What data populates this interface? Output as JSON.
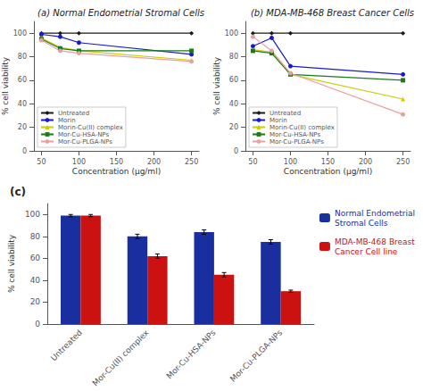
{
  "chart_data": [
    {
      "type": "line",
      "title": "(a) Normal Endometrial Stromal Cells",
      "xlabel": "Concentration (μg/ml)",
      "ylabel": "% cell viability",
      "x": [
        50,
        75,
        100,
        250
      ],
      "series": [
        {
          "name": "Untreated",
          "color": "#1a1a1a",
          "marker": "diamond",
          "values": [
            100,
            100,
            100,
            100
          ]
        },
        {
          "name": "Morin",
          "color": "#1a1acc",
          "marker": "circle",
          "values": [
            99,
            97,
            92,
            82
          ]
        },
        {
          "name": "Morin-Cu(II) complex",
          "color": "#cccc00",
          "marker": "triangle",
          "values": [
            96,
            88,
            85,
            77
          ]
        },
        {
          "name": "Mor-Cu-HSA-NPs",
          "color": "#1a7a1a",
          "marker": "square",
          "values": [
            95,
            87,
            85,
            85
          ]
        },
        {
          "name": "Mor-Cu-PLGA-NPs",
          "color": "#e8a0a0",
          "marker": "circle",
          "values": [
            94,
            85,
            83,
            76
          ]
        }
      ],
      "xlim": [
        40,
        260
      ],
      "xticks": [
        50,
        100,
        150,
        200,
        250
      ],
      "ylim": [
        0,
        110
      ],
      "yticks": [
        0,
        20,
        40,
        60,
        80,
        100
      ],
      "legend": "lower left",
      "grid": false
    },
    {
      "type": "line",
      "title": "(b) MDA-MB-468 Breast Cancer Cells",
      "xlabel": "Concentration (μg/ml)",
      "ylabel": "% cell viability",
      "x": [
        50,
        75,
        100,
        250
      ],
      "series": [
        {
          "name": "Untreated",
          "color": "#1a1a1a",
          "marker": "diamond",
          "values": [
            100,
            100,
            100,
            100
          ]
        },
        {
          "name": "Morin",
          "color": "#1a1acc",
          "marker": "circle",
          "values": [
            89,
            96,
            72,
            65
          ]
        },
        {
          "name": "Morin-Cu(II) complex",
          "color": "#cccc00",
          "marker": "triangle",
          "values": [
            86,
            84,
            65,
            44
          ]
        },
        {
          "name": "Mor-Cu-HSA-NPs",
          "color": "#1a7a1a",
          "marker": "square",
          "values": [
            85,
            83,
            65,
            60
          ]
        },
        {
          "name": "Mor-Cu-PLGA-NPs",
          "color": "#e8a0a0",
          "marker": "circle",
          "values": [
            97,
            85,
            66,
            31
          ]
        }
      ],
      "xlim": [
        40,
        260
      ],
      "xticks": [
        50,
        100,
        150,
        200,
        250
      ],
      "ylim": [
        0,
        110
      ],
      "yticks": [
        0,
        20,
        40,
        60,
        80,
        100
      ],
      "legend": "lower left",
      "grid": false
    },
    {
      "type": "bar",
      "title": "(c)",
      "ylabel": "% cell viability",
      "categories": [
        "Untreated",
        "Mor-Cu(II) complex",
        "Mor-Cu-HSA-NPs",
        "Mor-Cu-PLGA-NPs"
      ],
      "series": [
        {
          "name": "Normal Endometrial\nStromal Cells",
          "color": "#1a2f9f",
          "values": [
            99,
            80,
            84,
            75
          ],
          "errors": [
            1,
            2,
            2,
            2
          ]
        },
        {
          "name": "MDA-MB-468 Breast\nCancer Cell line",
          "color": "#cc1111",
          "values": [
            99,
            62,
            45,
            30
          ],
          "errors": [
            1,
            2,
            2,
            1
          ]
        }
      ],
      "ylim": [
        0,
        110
      ],
      "yticks": [
        0,
        20,
        40,
        60,
        80,
        100
      ],
      "legend": "upper right",
      "grid": false
    }
  ]
}
